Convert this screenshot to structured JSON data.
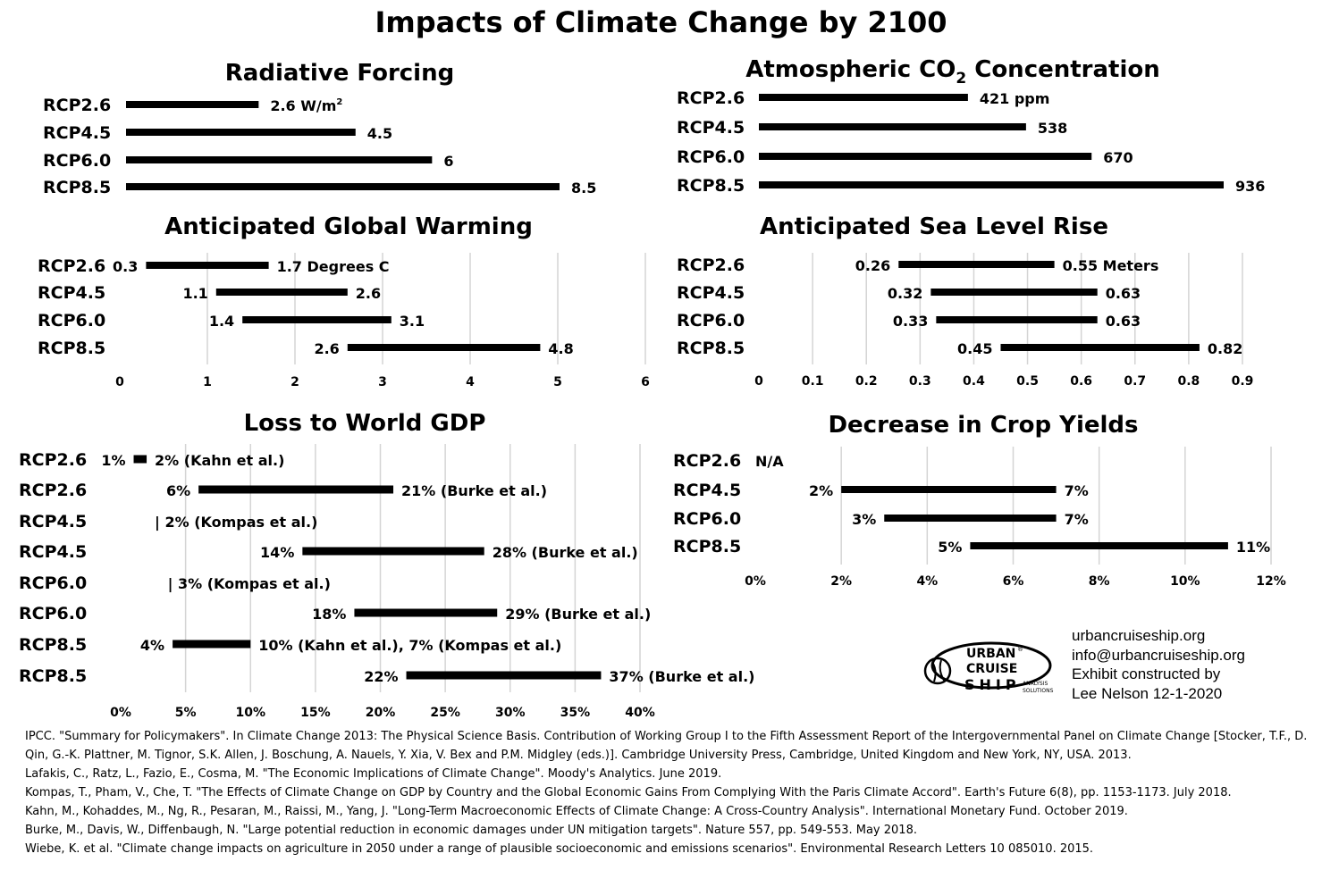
{
  "title": "Impacts of Climate Change by 2100",
  "chart_data": [
    {
      "id": "radiative-forcing",
      "type": "bar",
      "title": "Radiative Forcing",
      "categories": [
        "RCP2.6",
        "RCP4.5",
        "RCP6.0",
        "RCP8.5"
      ],
      "values": [
        2.6,
        4.5,
        6,
        8.5
      ],
      "value_labels": [
        "2.6 W/m",
        "4.5",
        "6",
        "8.5"
      ],
      "unit_superscript": "2",
      "xlim": [
        0,
        8.5
      ],
      "grid": false
    },
    {
      "id": "co2",
      "type": "bar",
      "title": "Atmospheric CO",
      "title_subscript": "2",
      "title_suffix": " Concentration",
      "categories": [
        "RCP2.6",
        "RCP4.5",
        "RCP6.0",
        "RCP8.5"
      ],
      "values": [
        421,
        538,
        670,
        936
      ],
      "value_labels": [
        "421 ppm",
        "538",
        "670",
        "936"
      ],
      "xlim": [
        0,
        936
      ],
      "grid": false
    },
    {
      "id": "warming",
      "type": "range-bar",
      "title": "Anticipated Global Warming",
      "categories": [
        "RCP2.6",
        "RCP4.5",
        "RCP6.0",
        "RCP8.5"
      ],
      "ranges": [
        [
          0.3,
          1.7
        ],
        [
          1.1,
          2.6
        ],
        [
          1.4,
          3.1
        ],
        [
          2.6,
          4.8
        ]
      ],
      "low_labels": [
        "0.3",
        "1.1",
        "1.4",
        "2.6"
      ],
      "high_labels": [
        "1.7 Degrees C",
        "2.6",
        "3.1",
        "4.8"
      ],
      "xlim": [
        0,
        6
      ],
      "xticks": [
        "0",
        "1",
        "2",
        "3",
        "4",
        "5",
        "6"
      ],
      "grid": true
    },
    {
      "id": "sea-level",
      "type": "range-bar",
      "title": "Anticipated Sea Level Rise",
      "categories": [
        "RCP2.6",
        "RCP4.5",
        "RCP6.0",
        "RCP8.5"
      ],
      "ranges": [
        [
          0.26,
          0.55
        ],
        [
          0.32,
          0.63
        ],
        [
          0.33,
          0.63
        ],
        [
          0.45,
          0.82
        ]
      ],
      "low_labels": [
        "0.26",
        "0.32",
        "0.33",
        "0.45"
      ],
      "high_labels": [
        "0.55  Meters",
        "0.63",
        "0.63",
        "0.82"
      ],
      "xlim": [
        0,
        0.9
      ],
      "xticks": [
        "0",
        "0.1",
        "0.2",
        "0.3",
        "0.4",
        "0.5",
        "0.6",
        "0.7",
        "0.8",
        "0.9"
      ],
      "grid": true
    },
    {
      "id": "gdp",
      "type": "range-bar",
      "title": "Loss to World GDP",
      "categories": [
        "RCP2.6",
        "RCP2.6",
        "RCP4.5",
        "RCP4.5",
        "RCP6.0",
        "RCP6.0",
        "RCP8.5",
        "RCP8.5"
      ],
      "ranges": [
        [
          1,
          2
        ],
        [
          6,
          21
        ],
        [
          2,
          2
        ],
        [
          14,
          28
        ],
        [
          3,
          3
        ],
        [
          18,
          29
        ],
        [
          4,
          10
        ],
        [
          22,
          37
        ]
      ],
      "low_labels": [
        "1%",
        "6%",
        "",
        "14%",
        "",
        "18%",
        "4%",
        "22%"
      ],
      "high_labels": [
        "2% (Kahn et al.)",
        "21% (Burke et al.)",
        "| 2% (Kompas et al.)",
        "28% (Burke et al.)",
        "| 3% (Kompas et al.)",
        "29% (Burke et al.)",
        "10% (Kahn et al.), 7% (Kompas et al.)",
        "37% (Burke et al.)"
      ],
      "xlim": [
        0,
        40
      ],
      "xticks": [
        "0%",
        "5%",
        "10%",
        "15%",
        "20%",
        "25%",
        "30%",
        "35%",
        "40%"
      ],
      "grid": true
    },
    {
      "id": "crop",
      "type": "range-bar",
      "title": "Decrease in Crop Yields",
      "categories": [
        "RCP2.6",
        "RCP4.5",
        "RCP6.0",
        "RCP8.5"
      ],
      "ranges": [
        null,
        [
          2,
          7
        ],
        [
          3,
          7
        ],
        [
          5,
          11
        ]
      ],
      "low_labels": [
        "",
        "2%",
        "3%",
        "5%"
      ],
      "high_labels": [
        "N/A",
        "7%",
        "7%",
        "11%"
      ],
      "xlim": [
        0,
        12
      ],
      "xticks": [
        "0%",
        "2%",
        "4%",
        "6%",
        "8%",
        "10%",
        "12%"
      ],
      "grid": true
    }
  ],
  "credits": {
    "line1": "urbancruiseship.org",
    "line2": "info@urbancruiseship.org",
    "line3": "Exhibit constructed by",
    "line4": "Lee Nelson 12-1-2020"
  },
  "logo": {
    "line1": "URBAN",
    "line2": "CRUISE",
    "line3": "SHIP",
    "sub1": "ANALYSIS",
    "sub2": "SOLUTIONS",
    "reg": "®"
  },
  "references": [
    "IPCC. \"Summary for Policymakers\". In Climate Change 2013: The Physical Science Basis. Contribution of Working Group I to the Fifth Assessment Report of the Intergovernmental Panel on Climate Change [Stocker, T.F., D. Qin, G.-K. Plattner, M. Tignor, S.K. Allen, J. Boschung, A. Nauels, Y. Xia, V. Bex and P.M. Midgley (eds.)]. Cambridge University Press, Cambridge, United Kingdom and New York, NY, USA. 2013.",
    "Lafakis, C., Ratz, L., Fazio, E., Cosma, M. \"The Economic Implications of Climate Change\". Moody's Analytics. June 2019.",
    "Kompas, T., Pham, V., Che, T. \"The Effects of Climate Change on GDP by Country and the Global Economic Gains From Complying With the Paris Climate Accord\". Earth's Future 6(8), pp. 1153-1173. July 2018.",
    "Kahn, M., Kohaddes, M., Ng, R., Pesaran, M., Raissi, M., Yang, J. \"Long-Term Macroeconomic Effects of Climate Change: A Cross-Country Analysis\". International Monetary Fund. October 2019.",
    "Burke, M., Davis, W., Diffenbaugh, N. \"Large potential reduction in economic damages under UN mitigation targets\". Nature 557, pp. 549-553. May 2018.",
    "Wiebe, K. et al. \"Climate change impacts on agriculture in 2050 under a range of plausible socioeconomic and emissions scenarios\". Environmental Research Letters 10 085010. 2015."
  ]
}
